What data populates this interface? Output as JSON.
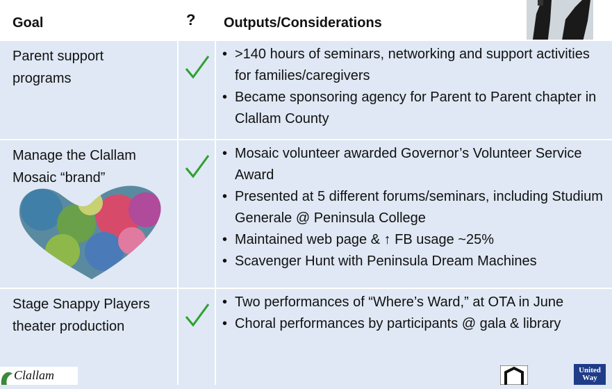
{
  "table": {
    "header": [
      "Goal",
      "?",
      "Outputs/Considerations"
    ],
    "rows": [
      {
        "goal": [
          "Parent support",
          "programs"
        ],
        "outputs": [
          ">140 hours of seminars, networking and support activities for families/caregivers",
          "Became sponsoring agency for Parent to Parent chapter in Clallam County"
        ]
      },
      {
        "goal": [
          "Manage the Clallam",
          "Mosaic “brand”"
        ],
        "outputs": [
          "Mosaic volunteer awarded Governor’s Volunteer Service Award",
          "Presented at 5 different forums/seminars, including Studium Generale @ Peninsula College",
          "Maintained web page & ↑ FB usage ~25%",
          "Scavenger Hunt with Peninsula Dream Machines"
        ]
      },
      {
        "goal": [
          "Stage Snappy Players",
          "theater production"
        ],
        "outputs": [
          "Two performances of “Where’s Ward,” at OTA in June",
          "Choral performances by participants @ gala & library"
        ]
      }
    ]
  },
  "logos": {
    "left": "Clallam",
    "right": [
      "United",
      "Way"
    ]
  }
}
